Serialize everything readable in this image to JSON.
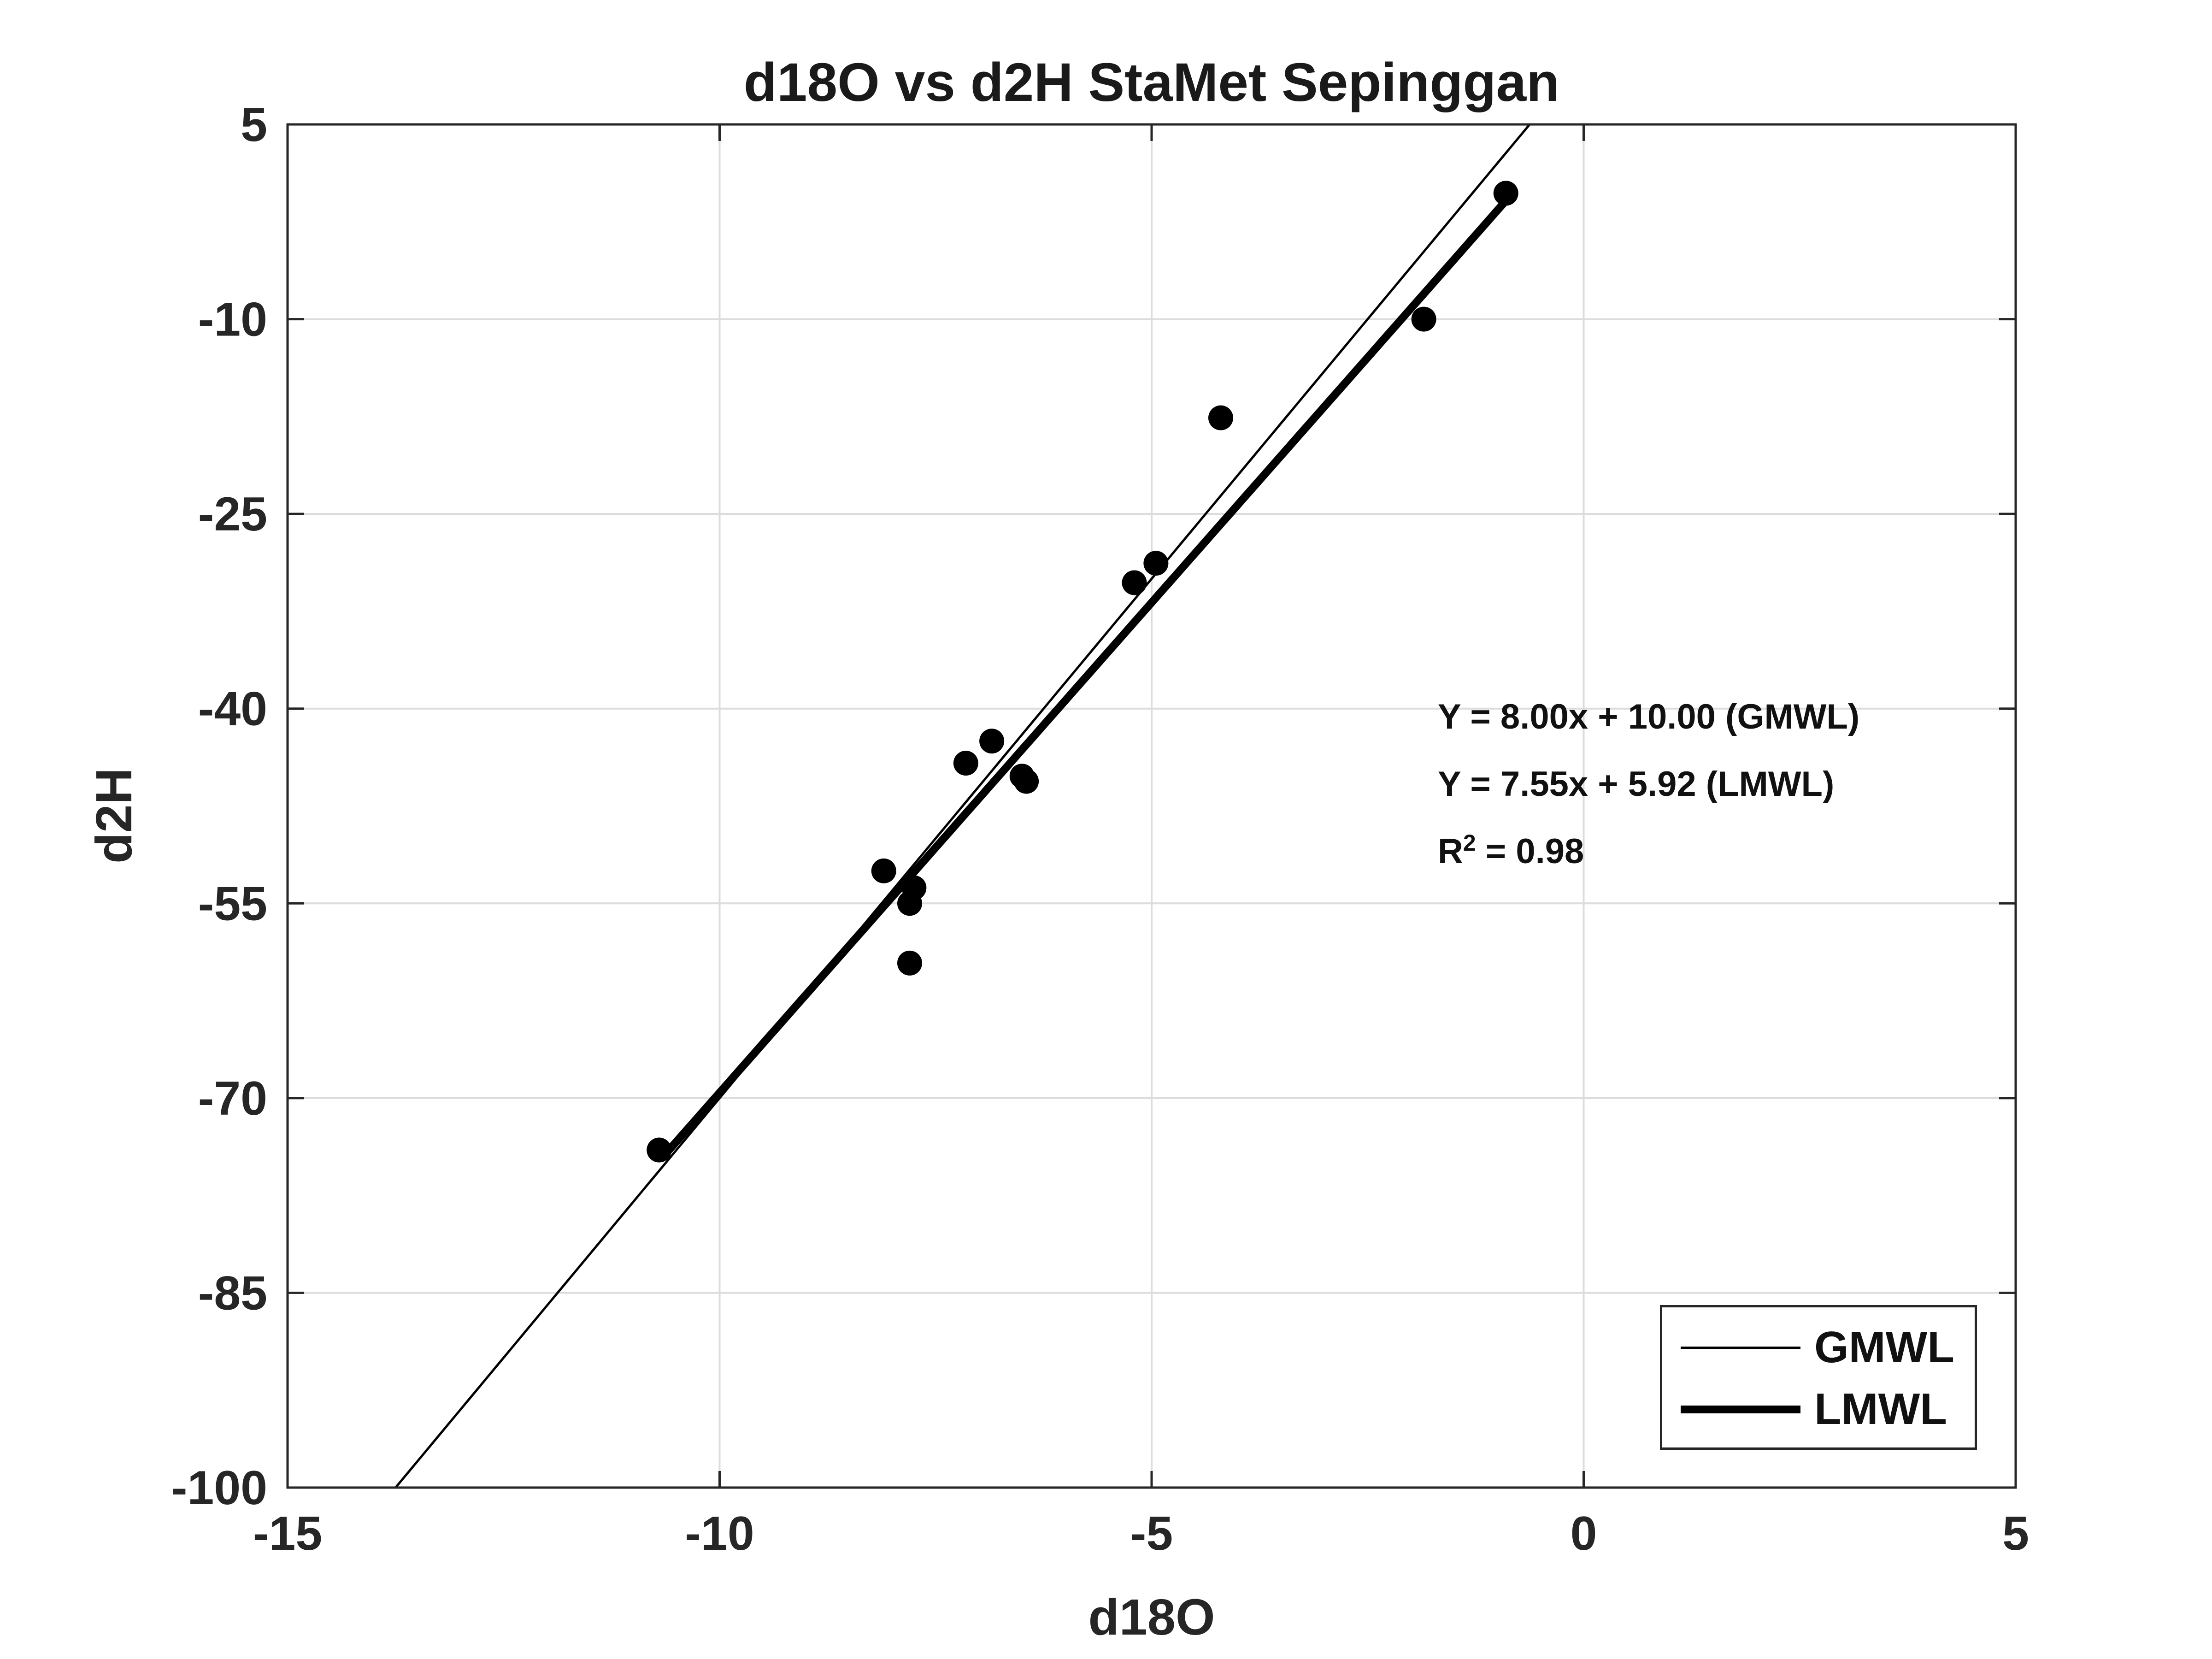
{
  "chart_data": {
    "type": "scatter",
    "title": "d18O vs d2H StaMet Sepinggan",
    "xlabel": "d18O",
    "ylabel": "d2H",
    "xlim": [
      -15,
      5
    ],
    "ylim": [
      -100,
      5
    ],
    "xticks": [
      -15,
      -10,
      -5,
      0,
      5
    ],
    "xtick_labels": [
      "-15",
      "-10",
      "-5",
      "0",
      "5"
    ],
    "yticks": [
      -100,
      -85,
      -70,
      -55,
      -40,
      -25,
      -10,
      5
    ],
    "ytick_labels": [
      "-100",
      "-85",
      "-70",
      "-55",
      "-40",
      "-25",
      "-10",
      "5"
    ],
    "grid": true,
    "points": {
      "x": [
        -10.7,
        -8.1,
        -7.75,
        -7.8,
        -7.8,
        -7.15,
        -6.85,
        -6.5,
        -6.45,
        -5.2,
        -4.95,
        -4.2,
        -1.85,
        -0.9
      ],
      "y": [
        -74.0,
        -52.5,
        -53.8,
        -55.0,
        -59.6,
        -44.2,
        -42.5,
        -45.2,
        -45.6,
        -30.3,
        -28.8,
        -17.6,
        -10.0,
        -0.3
      ]
    },
    "lines": [
      {
        "name": "GMWL",
        "slope": 8.0,
        "intercept": 10.0,
        "x_range": [
          -13.75,
          -0.625
        ],
        "color": "#000000",
        "style": "thin"
      },
      {
        "name": "LMWL",
        "slope": 7.55,
        "intercept": 5.92,
        "x_range": [
          -10.6,
          -0.9
        ],
        "color": "#000000",
        "style": "thick"
      }
    ],
    "annotations": [
      "Y = 8.00x + 10.00 (GMWL)",
      "Y = 7.55x + 5.92 (LMWL)"
    ],
    "r2_label": {
      "prefix": "R",
      "superscript": "2",
      "suffix": " = 0.98"
    },
    "legend": {
      "position": "bottom-right",
      "entries": [
        "GMWL",
        "LMWL"
      ]
    }
  }
}
